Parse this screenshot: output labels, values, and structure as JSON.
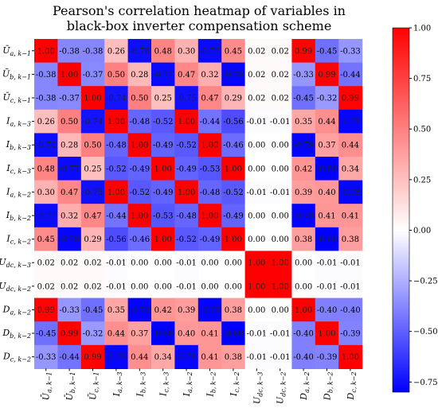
{
  "chart_data": {
    "type": "heatmap",
    "title_lines": [
      "Pearson's correlation heatmap of variables in",
      "black-box inverter compensation scheme"
    ],
    "row_labels": [
      {
        "base": "Ū",
        "sub": "a, k−1"
      },
      {
        "base": "Ū",
        "sub": "b, k−1"
      },
      {
        "base": "Ū",
        "sub": "c, k−1"
      },
      {
        "base": "I",
        "sub": "a, k−3"
      },
      {
        "base": "I",
        "sub": "b, k−3"
      },
      {
        "base": "I",
        "sub": "c, k−3"
      },
      {
        "base": "I",
        "sub": "a, k−2"
      },
      {
        "base": "I",
        "sub": "b, k−2"
      },
      {
        "base": "I",
        "sub": "c, k−2"
      },
      {
        "base": "U",
        "sub": "dc, k−3"
      },
      {
        "base": "U",
        "sub": "dc, k−2"
      },
      {
        "base": "D",
        "sub": "a, k−2"
      },
      {
        "base": "D",
        "sub": "b, k−2"
      },
      {
        "base": "D",
        "sub": "c, k−2"
      }
    ],
    "col_labels": [
      {
        "base": "Ū",
        "sub": "a, k−1"
      },
      {
        "base": "Ū",
        "sub": "b, k−1"
      },
      {
        "base": "Ū",
        "sub": "c, k−1"
      },
      {
        "base": "I",
        "sub": "a, k−3"
      },
      {
        "base": "I",
        "sub": "b, k−3"
      },
      {
        "base": "I",
        "sub": "c, k−3"
      },
      {
        "base": "I",
        "sub": "a, k−2"
      },
      {
        "base": "I",
        "sub": "b, k−2"
      },
      {
        "base": "I",
        "sub": "c, k−2"
      },
      {
        "base": "U",
        "sub": "dc, k−3"
      },
      {
        "base": "U",
        "sub": "dc, k−2"
      },
      {
        "base": "D",
        "sub": "a, k−2"
      },
      {
        "base": "D",
        "sub": "b, k−2"
      },
      {
        "base": "D",
        "sub": "c, k−2"
      }
    ],
    "values": [
      [
        1.0,
        -0.38,
        -0.38,
        0.26,
        -0.76,
        0.48,
        0.3,
        -0.77,
        0.45,
        0.02,
        0.02,
        0.99,
        -0.45,
        -0.33
      ],
      [
        -0.38,
        1.0,
        -0.37,
        0.5,
        0.28,
        -0.77,
        0.47,
        0.32,
        -0.78,
        0.02,
        0.02,
        -0.33,
        0.99,
        -0.44
      ],
      [
        -0.38,
        -0.37,
        1.0,
        -0.74,
        0.5,
        0.25,
        -0.75,
        0.47,
        0.29,
        0.02,
        0.02,
        -0.45,
        -0.32,
        0.99
      ],
      [
        0.26,
        0.5,
        -0.74,
        1.0,
        -0.48,
        -0.52,
        1.0,
        -0.44,
        -0.56,
        -0.01,
        -0.01,
        0.35,
        0.44,
        -0.78
      ],
      [
        -0.76,
        0.28,
        0.5,
        -0.48,
        1.0,
        -0.49,
        -0.52,
        1.0,
        -0.46,
        0.0,
        0.0,
        -0.79,
        0.37,
        0.44
      ],
      [
        0.48,
        -0.77,
        0.25,
        -0.52,
        -0.49,
        1.0,
        -0.49,
        -0.53,
        1.0,
        0.0,
        0.0,
        0.42,
        -0.8,
        0.34
      ],
      [
        0.3,
        0.47,
        -0.75,
        1.0,
        -0.52,
        -0.49,
        1.0,
        -0.48,
        -0.52,
        -0.01,
        -0.01,
        0.39,
        0.4,
        -0.78
      ],
      [
        -0.77,
        0.32,
        0.47,
        -0.44,
        1.0,
        -0.53,
        -0.48,
        1.0,
        -0.49,
        0.0,
        0.0,
        -0.79,
        0.41,
        0.41
      ],
      [
        0.45,
        -0.78,
        0.29,
        -0.56,
        -0.46,
        1.0,
        -0.52,
        -0.49,
        1.0,
        0.0,
        0.0,
        0.38,
        -0.8,
        0.38
      ],
      [
        0.02,
        0.02,
        0.02,
        -0.01,
        0.0,
        0.0,
        -0.01,
        0.0,
        0.0,
        1.0,
        1.0,
        0.0,
        -0.01,
        -0.01
      ],
      [
        0.02,
        0.02,
        0.02,
        -0.01,
        0.0,
        0.0,
        -0.01,
        0.0,
        0.0,
        1.0,
        1.0,
        0.0,
        -0.01,
        -0.01
      ],
      [
        0.99,
        -0.33,
        -0.45,
        0.35,
        -0.79,
        0.42,
        0.39,
        -0.79,
        0.38,
        0.0,
        0.0,
        1.0,
        -0.4,
        -0.4
      ],
      [
        -0.45,
        0.99,
        -0.32,
        0.44,
        0.37,
        -0.8,
        0.4,
        0.41,
        -0.8,
        -0.01,
        -0.01,
        -0.4,
        1.0,
        -0.39
      ],
      [
        -0.33,
        -0.44,
        0.99,
        -0.78,
        0.44,
        0.34,
        -0.78,
        0.41,
        0.38,
        -0.01,
        -0.01,
        -0.4,
        -0.39,
        1.0
      ]
    ],
    "value_range": [
      -0.8,
      1.0
    ],
    "colormap": "bwr",
    "colorbar_ticks": [
      "1.00",
      "0.75",
      "0.50",
      "0.25",
      "0.00",
      "−0.25",
      "−0.50",
      "−0.75"
    ],
    "colorbar_tick_values": [
      1.0,
      0.75,
      0.5,
      0.25,
      0.0,
      -0.25,
      -0.5,
      -0.75
    ],
    "colors": {
      "low": "#0000ff",
      "mid": "#ffffff",
      "high": "#ff0000"
    }
  }
}
